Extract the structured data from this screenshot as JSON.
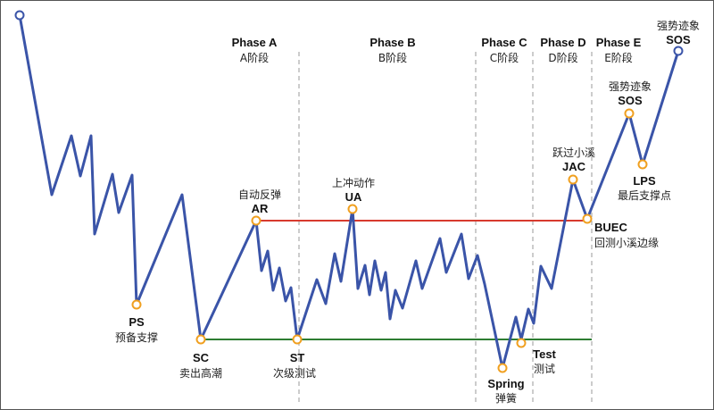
{
  "colors": {
    "price_line": "#3a54a8",
    "resistance_line": "#d83a2e",
    "support_line": "#2e7d32",
    "event_marker": "#f0a020",
    "endpoint_marker": "#3a54a8",
    "phase_divider": "#9a9a9a",
    "frame": "#555555"
  },
  "phases": [
    {
      "title": "Phase A",
      "subtitle": "A阶段"
    },
    {
      "title": "Phase B",
      "subtitle": "B阶段"
    },
    {
      "title": "Phase C",
      "subtitle": "C阶段"
    },
    {
      "title": "Phase D",
      "subtitle": "D阶段"
    },
    {
      "title": "Phase E",
      "subtitle": "E阶段"
    }
  ],
  "events": {
    "ps": {
      "code": "PS",
      "name": "预备支撑"
    },
    "sc": {
      "code": "SC",
      "name": "卖出高潮"
    },
    "ar": {
      "code": "AR",
      "name": "自动反弹"
    },
    "st": {
      "code": "ST",
      "name": "次级测试"
    },
    "ua": {
      "code": "UA",
      "name": "上冲动作"
    },
    "spring": {
      "code": "Spring",
      "name": "弹簧"
    },
    "test": {
      "code": "Test",
      "name": "测试"
    },
    "jac": {
      "code": "JAC",
      "name": "跃过小溪"
    },
    "buec": {
      "code": "BUEC",
      "name": "回测小溪边缘"
    },
    "sos1": {
      "code": "SOS",
      "name": "强势迹象"
    },
    "lps": {
      "code": "LPS",
      "name": "最后支撑点"
    },
    "sos2": {
      "code": "SOS",
      "name": "强势迹象"
    }
  }
}
